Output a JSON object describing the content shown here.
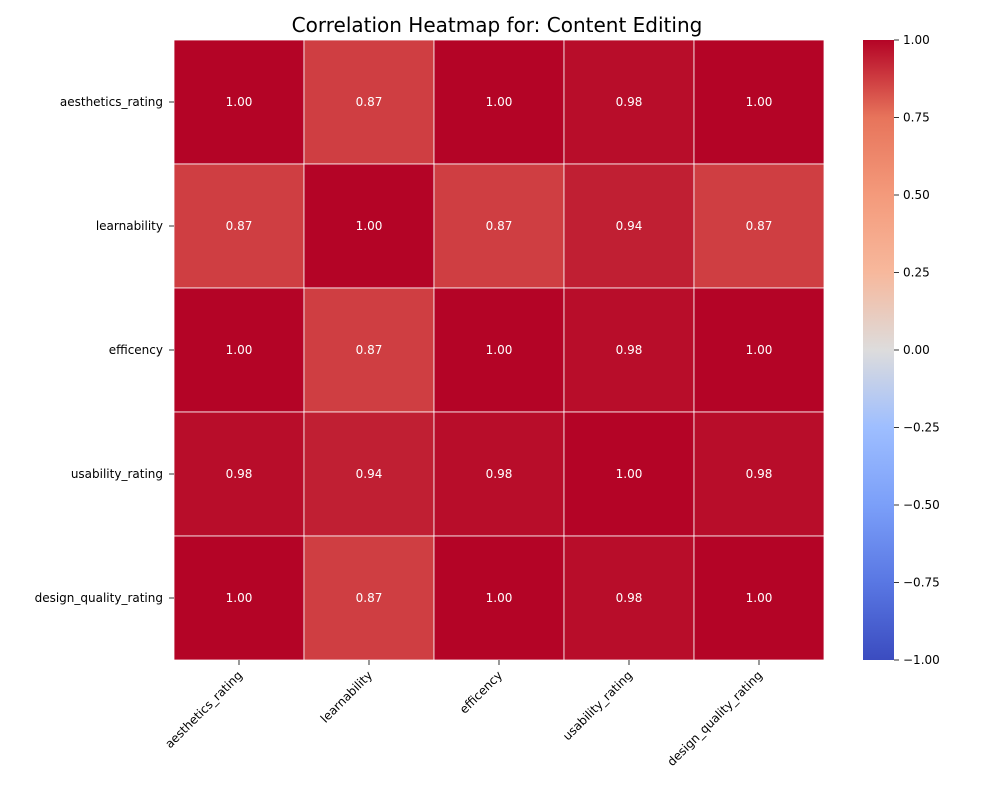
{
  "chart_data": {
    "type": "heatmap",
    "title": "Correlation Heatmap for: Content Editing",
    "variables": [
      "aesthetics_rating",
      "learnability",
      "efficency",
      "usability_rating",
      "design_quality_rating"
    ],
    "matrix": [
      [
        1.0,
        0.87,
        1.0,
        0.98,
        1.0
      ],
      [
        0.87,
        1.0,
        0.87,
        0.94,
        0.87
      ],
      [
        1.0,
        0.87,
        1.0,
        0.98,
        1.0
      ],
      [
        0.98,
        0.94,
        0.98,
        1.0,
        0.98
      ],
      [
        1.0,
        0.87,
        1.0,
        0.98,
        1.0
      ]
    ],
    "colormap": "coolwarm",
    "vmin": -1.0,
    "vmax": 1.0,
    "annotation_format": "0.00",
    "annotation_color": "#ffffff",
    "cell_border_color": "#ffffff",
    "colorbar_ticks": [
      "1.00",
      "0.75",
      "0.50",
      "0.25",
      "0.00",
      "−0.25",
      "−0.50",
      "−0.75",
      "−1.00"
    ],
    "colorbar_tick_values": [
      1.0,
      0.75,
      0.5,
      0.25,
      0.0,
      -0.25,
      -0.5,
      -0.75,
      -1.0
    ]
  }
}
